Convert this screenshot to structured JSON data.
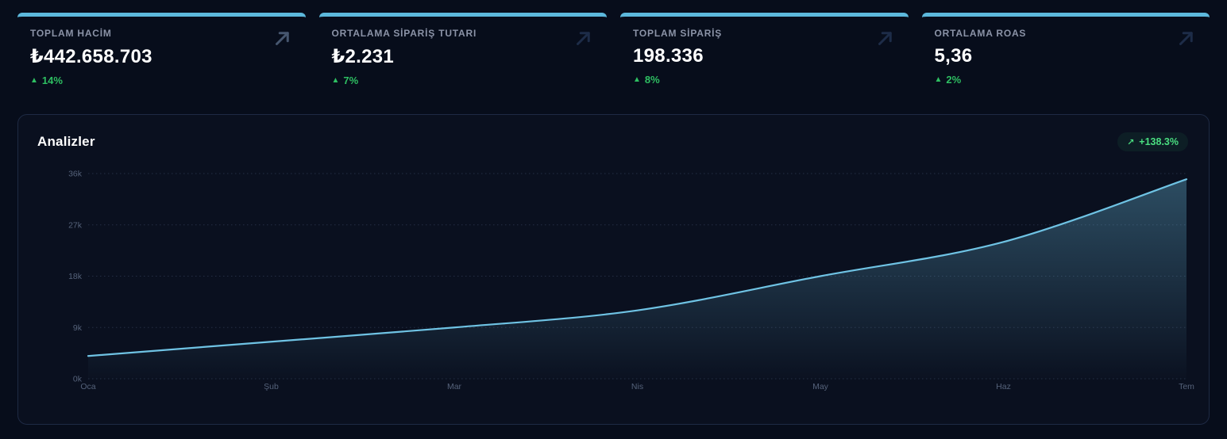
{
  "theme": {
    "page_bg": "#070d1b",
    "panel_bg": "#0a101f",
    "panel_border": "#1e2a44",
    "accent_blue": "#5cb8dc",
    "line_blue": "#6fc3e4",
    "green": "#2ebf62",
    "badge_green": "#4ade80",
    "label_gray": "#8b93a7",
    "tick_gray": "#55627a",
    "grid_color": "#3a4763"
  },
  "stat_cards": [
    {
      "label": "TOPLAM HACİM",
      "value": "₺442.658.703",
      "trend_glyph": "▲",
      "change": "14%",
      "icon": "arrow-up-right-icon"
    },
    {
      "label": "ORTALAMA SİPARİŞ TUTARI",
      "value": "₺2.231",
      "trend_glyph": "▲",
      "change": "7%",
      "icon": "arrow-up-right-icon"
    },
    {
      "label": "TOPLAM SİPARİŞ",
      "value": "198.336",
      "trend_glyph": "▲",
      "change": "8%",
      "icon": "arrow-up-right-icon"
    },
    {
      "label": "ORTALAMA ROAS",
      "value": "5,36",
      "trend_glyph": "▲",
      "change": "2%",
      "icon": "arrow-up-right-icon"
    }
  ],
  "analytics_panel": {
    "title": "Analizler",
    "badge": {
      "icon": "↗",
      "text": "+138.3%"
    }
  },
  "chart_data": {
    "type": "area",
    "title": "Analizler",
    "x": [
      "Oca",
      "Şub",
      "Mar",
      "Nis",
      "May",
      "Haz",
      "Tem"
    ],
    "values": [
      4000,
      6500,
      9000,
      12000,
      18000,
      24000,
      35000
    ],
    "ylim": [
      0,
      36000
    ],
    "yticks": [
      {
        "v": 0,
        "label": "0k"
      },
      {
        "v": 9000,
        "label": "9k"
      },
      {
        "v": 18000,
        "label": "18k"
      },
      {
        "v": 27000,
        "label": "27k"
      },
      {
        "v": 36000,
        "label": "36k"
      }
    ],
    "grid": "horizontal-dashed",
    "legend": "none",
    "line_color": "#6fc3e4",
    "area_fill": "vertical gradient of line color fading to transparent"
  }
}
